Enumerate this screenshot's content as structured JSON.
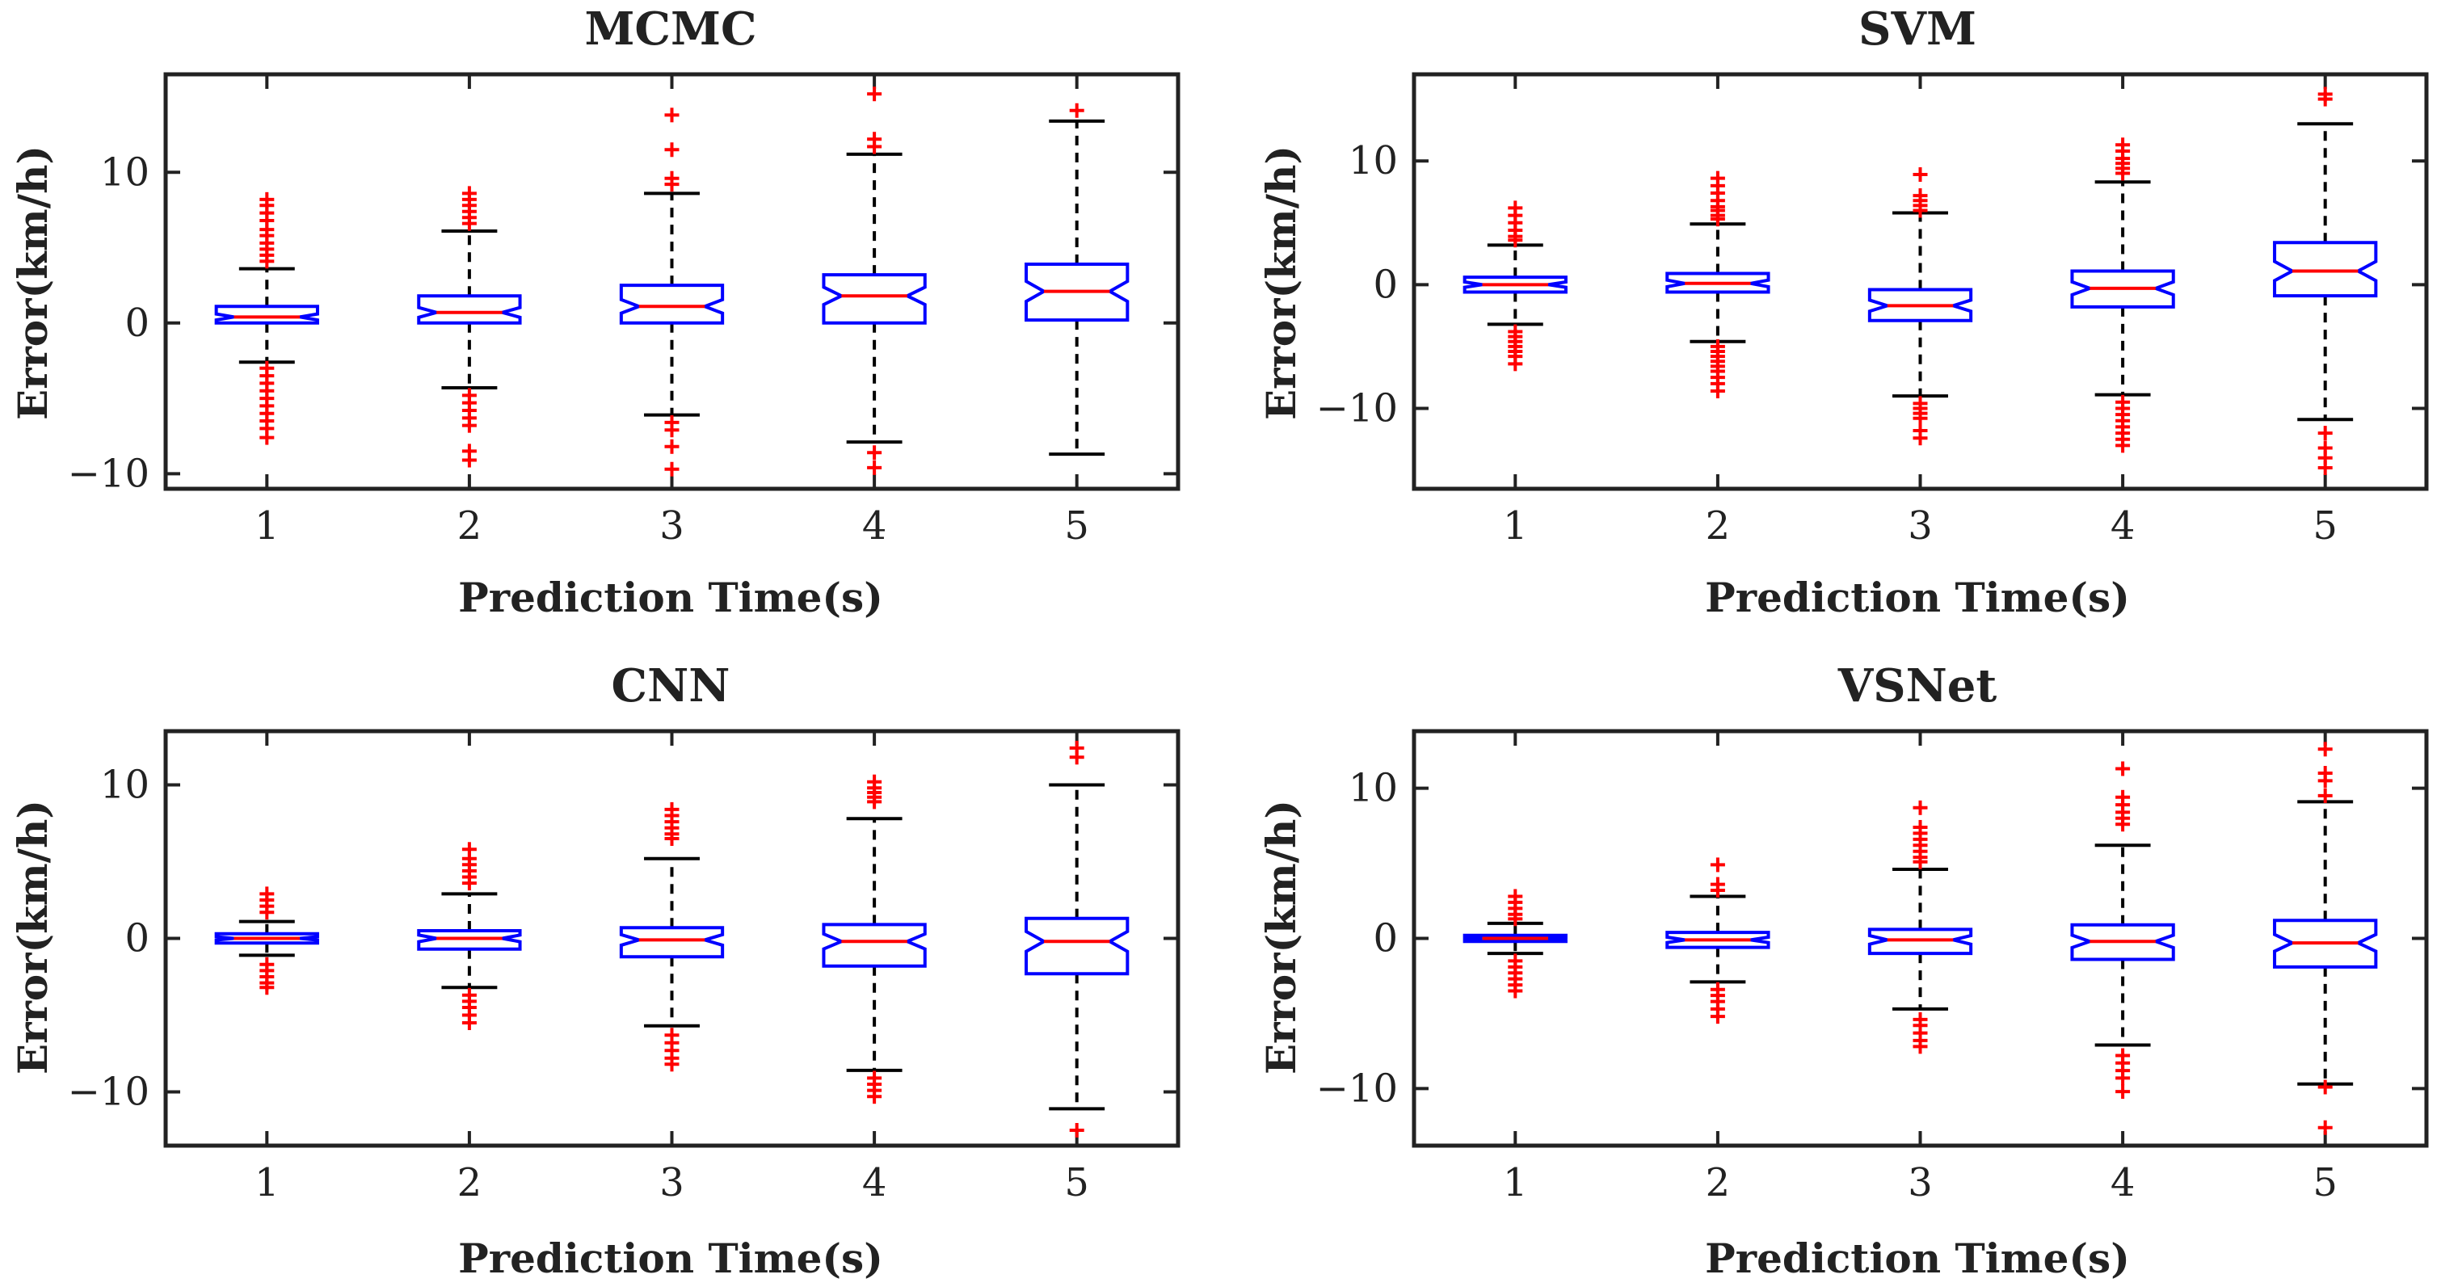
{
  "figure": {
    "colors": {
      "box": "#0000ff",
      "median": "#ff0000",
      "outlier": "#ff0000",
      "whisker": "#000000",
      "axis": "#222222"
    }
  },
  "chart_data": [
    {
      "type": "box",
      "title": "MCMC",
      "xlabel": "Prediction Time(s)",
      "ylabel": "Error(km/h)",
      "categories": [
        "1",
        "2",
        "3",
        "4",
        "5"
      ],
      "yticks": [
        -10,
        0,
        10
      ],
      "ytick_labels": [
        "−10",
        "0",
        "10"
      ],
      "ylim": [
        -11,
        16.5
      ],
      "boxes": [
        {
          "q1": 0.0,
          "median": 0.4,
          "q3": 1.1,
          "whisker_low": -2.6,
          "whisker_high": 3.6,
          "outliers": [
            8.2,
            7.8,
            7.3,
            6.8,
            6.2,
            5.8,
            5.3,
            4.9,
            4.5,
            4.1,
            -3.0,
            -3.5,
            -4.0,
            -4.5,
            -5.0,
            -5.5,
            -6.0,
            -6.5,
            -7.0,
            -7.6
          ]
        },
        {
          "q1": 0.0,
          "median": 0.7,
          "q3": 1.8,
          "whisker_low": -4.3,
          "whisker_high": 6.1,
          "outliers": [
            8.6,
            8.2,
            7.8,
            7.4,
            7.0,
            6.6,
            -4.8,
            -5.3,
            -5.8,
            -6.3,
            -6.8,
            -8.5,
            -9.1
          ]
        },
        {
          "q1": 0.0,
          "median": 1.1,
          "q3": 2.5,
          "whisker_low": -6.1,
          "whisker_high": 8.6,
          "outliers": [
            13.8,
            11.5,
            9.6,
            9.2,
            -6.6,
            -7.1,
            -8.2,
            -9.7
          ]
        },
        {
          "q1": 0.0,
          "median": 1.8,
          "q3": 3.2,
          "whisker_low": -7.9,
          "whisker_high": 11.2,
          "outliers": [
            15.2,
            12.2,
            11.7,
            -8.6,
            -9.6
          ]
        },
        {
          "q1": 0.2,
          "median": 2.1,
          "q3": 3.9,
          "whisker_low": -8.7,
          "whisker_high": 13.4,
          "outliers": [
            14.1
          ]
        }
      ]
    },
    {
      "type": "box",
      "title": "SVM",
      "xlabel": "Prediction Time(s)",
      "ylabel": "Error(km/h)",
      "categories": [
        "1",
        "2",
        "3",
        "4",
        "5"
      ],
      "yticks": [
        -10,
        0,
        10
      ],
      "ytick_labels": [
        "−10",
        "0",
        "10"
      ],
      "ylim": [
        -16.5,
        17
      ],
      "boxes": [
        {
          "q1": -0.6,
          "median": 0.0,
          "q3": 0.6,
          "whisker_low": -3.2,
          "whisker_high": 3.2,
          "outliers": [
            6.2,
            5.6,
            5.0,
            4.4,
            3.9,
            3.6,
            -3.8,
            -4.2,
            -4.6,
            -5.0,
            -5.4,
            -5.8,
            -6.4
          ]
        },
        {
          "q1": -0.6,
          "median": 0.1,
          "q3": 0.9,
          "whisker_low": -4.6,
          "whisker_high": 4.9,
          "outliers": [
            8.6,
            8.0,
            7.4,
            6.8,
            6.3,
            6.0,
            5.6,
            5.3,
            -5.0,
            -5.4,
            -5.8,
            -6.2,
            -6.6,
            -7.0,
            -7.5,
            -8.0,
            -8.6
          ]
        },
        {
          "q1": -2.9,
          "median": -1.7,
          "q3": -0.4,
          "whisker_low": -9.0,
          "whisker_high": 5.8,
          "outliers": [
            8.9,
            7.2,
            6.8,
            6.4,
            6.0,
            -9.6,
            -10.0,
            -10.4,
            -10.8,
            -11.8,
            -12.4
          ]
        },
        {
          "q1": -1.8,
          "median": -0.3,
          "q3": 1.1,
          "whisker_low": -8.9,
          "whisker_high": 8.3,
          "outliers": [
            11.3,
            10.8,
            10.2,
            9.8,
            9.4,
            9.0,
            -9.5,
            -10.0,
            -10.5,
            -11.0,
            -11.5,
            -12.0,
            -12.5,
            -13.0
          ]
        },
        {
          "q1": -0.9,
          "median": 1.1,
          "q3": 3.4,
          "whisker_low": -10.9,
          "whisker_high": 13.0,
          "outliers": [
            15.4,
            15.0,
            -12.0,
            -13.2,
            -14.0,
            -14.8
          ]
        }
      ]
    },
    {
      "type": "box",
      "title": "CNN",
      "xlabel": "Prediction Time(s)",
      "ylabel": "Error(km/h)",
      "categories": [
        "1",
        "2",
        "3",
        "4",
        "5"
      ],
      "yticks": [
        -10,
        0,
        10
      ],
      "ytick_labels": [
        "−10",
        "0",
        "10"
      ],
      "ylim": [
        -13.5,
        13.5
      ],
      "boxes": [
        {
          "q1": -0.3,
          "median": 0.0,
          "q3": 0.3,
          "whisker_low": -1.1,
          "whisker_high": 1.1,
          "outliers": [
            2.9,
            2.5,
            2.1,
            1.7,
            -1.7,
            -2.1,
            -2.5,
            -2.9,
            -3.2
          ]
        },
        {
          "q1": -0.7,
          "median": 0.0,
          "q3": 0.5,
          "whisker_low": -3.2,
          "whisker_high": 2.9,
          "outliers": [
            5.8,
            5.2,
            4.8,
            4.4,
            4.0,
            3.6,
            -3.7,
            -4.1,
            -4.5,
            -5.0,
            -5.5
          ]
        },
        {
          "q1": -1.2,
          "median": -0.1,
          "q3": 0.7,
          "whisker_low": -5.7,
          "whisker_high": 5.2,
          "outliers": [
            8.4,
            8.0,
            7.6,
            7.2,
            6.8,
            6.5,
            -6.3,
            -6.8,
            -7.3,
            -7.8,
            -8.2
          ]
        },
        {
          "q1": -1.8,
          "median": -0.2,
          "q3": 0.9,
          "whisker_low": -8.6,
          "whisker_high": 7.8,
          "outliers": [
            10.2,
            9.8,
            9.5,
            9.2,
            8.9,
            -9.1,
            -9.5,
            -9.9,
            -10.3
          ]
        },
        {
          "q1": -2.3,
          "median": -0.2,
          "q3": 1.3,
          "whisker_low": -11.1,
          "whisker_high": 10.0,
          "outliers": [
            12.4,
            11.8,
            -12.5
          ]
        }
      ]
    },
    {
      "type": "box",
      "title": "VSNet",
      "xlabel": "Prediction Time(s)",
      "ylabel": "Error(km/h)",
      "categories": [
        "1",
        "2",
        "3",
        "4",
        "5"
      ],
      "yticks": [
        -10,
        0,
        10
      ],
      "ytick_labels": [
        "−10",
        "0",
        "10"
      ],
      "ylim": [
        -13.8,
        13.8
      ],
      "boxes": [
        {
          "q1": -0.2,
          "median": 0.0,
          "q3": 0.2,
          "whisker_low": -1.0,
          "whisker_high": 1.0,
          "outliers": [
            2.8,
            2.4,
            2.0,
            1.6,
            1.3,
            -1.5,
            -1.9,
            -2.3,
            -2.7,
            -3.1,
            -3.5
          ]
        },
        {
          "q1": -0.6,
          "median": -0.1,
          "q3": 0.4,
          "whisker_low": -2.9,
          "whisker_high": 2.8,
          "outliers": [
            4.9,
            3.6,
            3.2,
            -3.4,
            -3.8,
            -4.2,
            -4.7,
            -5.2
          ]
        },
        {
          "q1": -1.0,
          "median": -0.1,
          "q3": 0.6,
          "whisker_low": -4.7,
          "whisker_high": 4.6,
          "outliers": [
            8.7,
            7.4,
            7.0,
            6.6,
            6.2,
            5.8,
            5.4,
            5.1,
            -5.4,
            -5.8,
            -6.3,
            -6.8,
            -7.2
          ]
        },
        {
          "q1": -1.4,
          "median": -0.2,
          "q3": 0.9,
          "whisker_low": -7.1,
          "whisker_high": 6.2,
          "outliers": [
            11.3,
            9.4,
            8.9,
            8.4,
            8.0,
            7.6,
            -7.8,
            -8.3,
            -8.8,
            -9.3,
            -10.2
          ]
        },
        {
          "q1": -1.9,
          "median": -0.3,
          "q3": 1.2,
          "whisker_low": -9.7,
          "whisker_high": 9.1,
          "outliers": [
            12.6,
            11.0,
            10.5,
            9.5,
            -9.9,
            -12.6
          ]
        }
      ]
    }
  ]
}
